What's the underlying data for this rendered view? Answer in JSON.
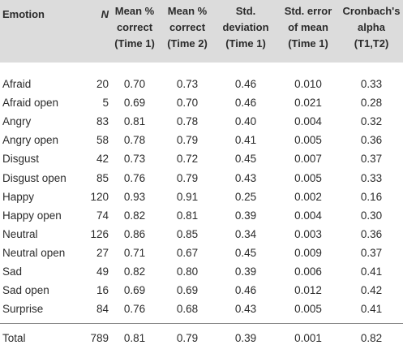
{
  "table": {
    "headers": {
      "emotion": "Emotion",
      "n": "N",
      "mean_t1": [
        "Mean %",
        "correct",
        "(Time 1)"
      ],
      "mean_t2": [
        "Mean %",
        "correct",
        "(Time 2)"
      ],
      "std_dev": [
        "Std.",
        "deviation",
        "(Time 1)"
      ],
      "std_err": [
        "Std. error",
        "of mean",
        "(Time 1)"
      ],
      "alpha": [
        "Cronbach's",
        "alpha",
        "(T1,T2)"
      ]
    },
    "rows": [
      {
        "emotion": "Afraid",
        "n": "20",
        "mean_t1": "0.70",
        "mean_t2": "0.73",
        "std_dev": "0.46",
        "std_err": "0.010",
        "alpha": "0.33"
      },
      {
        "emotion": "Afraid open",
        "n": "5",
        "mean_t1": "0.69",
        "mean_t2": "0.70",
        "std_dev": "0.46",
        "std_err": "0.021",
        "alpha": "0.28"
      },
      {
        "emotion": "Angry",
        "n": "83",
        "mean_t1": "0.81",
        "mean_t2": "0.78",
        "std_dev": "0.40",
        "std_err": "0.004",
        "alpha": "0.32"
      },
      {
        "emotion": "Angry open",
        "n": "58",
        "mean_t1": "0.78",
        "mean_t2": "0.79",
        "std_dev": "0.41",
        "std_err": "0.005",
        "alpha": "0.36"
      },
      {
        "emotion": "Disgust",
        "n": "42",
        "mean_t1": "0.73",
        "mean_t2": "0.72",
        "std_dev": "0.45",
        "std_err": "0.007",
        "alpha": "0.37"
      },
      {
        "emotion": "Disgust open",
        "n": "85",
        "mean_t1": "0.76",
        "mean_t2": "0.79",
        "std_dev": "0.43",
        "std_err": "0.005",
        "alpha": "0.33"
      },
      {
        "emotion": "Happy",
        "n": "120",
        "mean_t1": "0.93",
        "mean_t2": "0.91",
        "std_dev": "0.25",
        "std_err": "0.002",
        "alpha": "0.16"
      },
      {
        "emotion": "Happy open",
        "n": "74",
        "mean_t1": "0.82",
        "mean_t2": "0.81",
        "std_dev": "0.39",
        "std_err": "0.004",
        "alpha": "0.30"
      },
      {
        "emotion": "Neutral",
        "n": "126",
        "mean_t1": "0.86",
        "mean_t2": "0.85",
        "std_dev": "0.34",
        "std_err": "0.003",
        "alpha": "0.36"
      },
      {
        "emotion": "Neutral open",
        "n": "27",
        "mean_t1": "0.71",
        "mean_t2": "0.67",
        "std_dev": "0.45",
        "std_err": "0.009",
        "alpha": "0.37"
      },
      {
        "emotion": "Sad",
        "n": "49",
        "mean_t1": "0.82",
        "mean_t2": "0.80",
        "std_dev": "0.39",
        "std_err": "0.006",
        "alpha": "0.41"
      },
      {
        "emotion": "Sad open",
        "n": "16",
        "mean_t1": "0.69",
        "mean_t2": "0.69",
        "std_dev": "0.46",
        "std_err": "0.012",
        "alpha": "0.42"
      },
      {
        "emotion": "Surprise",
        "n": "84",
        "mean_t1": "0.76",
        "mean_t2": "0.68",
        "std_dev": "0.43",
        "std_err": "0.005",
        "alpha": "0.41"
      }
    ],
    "total": {
      "emotion": "Total",
      "n": "789",
      "mean_t1": "0.81",
      "mean_t2": "0.79",
      "std_dev": "0.39",
      "std_err": "0.001",
      "alpha": "0.82"
    }
  },
  "colors": {
    "header_bg": "#dcdcdc",
    "text": "#2b2b2b",
    "divider": "#8c8c8c"
  }
}
